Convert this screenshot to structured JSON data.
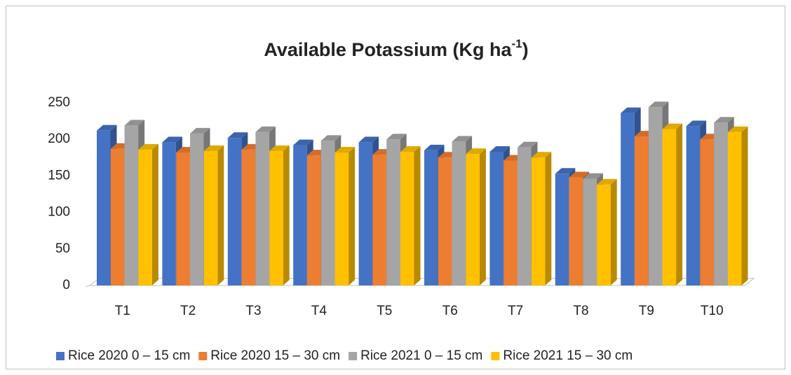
{
  "chart_data": {
    "type": "bar3d",
    "title": {
      "text": "Available Potassium (Kg ha",
      "superscript": "-1",
      "suffix": ")"
    },
    "categories": [
      "T1",
      "T2",
      "T3",
      "T4",
      "T5",
      "T6",
      "T7",
      "T8",
      "T9",
      "T10"
    ],
    "series": [
      {
        "name": "Rice 2020 0 – 15 cm",
        "color": "#4472c4",
        "values": [
          212,
          196,
          202,
          192,
          196,
          185,
          183,
          153,
          236,
          218
        ]
      },
      {
        "name": "Rice 2020 15 – 30 cm",
        "color": "#ed7d31",
        "values": [
          187,
          182,
          186,
          178,
          179,
          175,
          171,
          148,
          204,
          200
        ]
      },
      {
        "name": "Rice 2021 0 – 15 cm",
        "color": "#a5a5a5",
        "values": [
          219,
          208,
          210,
          198,
          200,
          197,
          189,
          146,
          244,
          223
        ]
      },
      {
        "name": "Rice 2021 15 – 30 cm",
        "color": "#ffc000",
        "values": [
          186,
          184,
          184,
          182,
          183,
          180,
          175,
          138,
          214,
          210
        ]
      }
    ],
    "ylim": [
      0,
      250
    ],
    "yticks": [
      0,
      50,
      100,
      150,
      200,
      250
    ],
    "legend": "bottom"
  }
}
